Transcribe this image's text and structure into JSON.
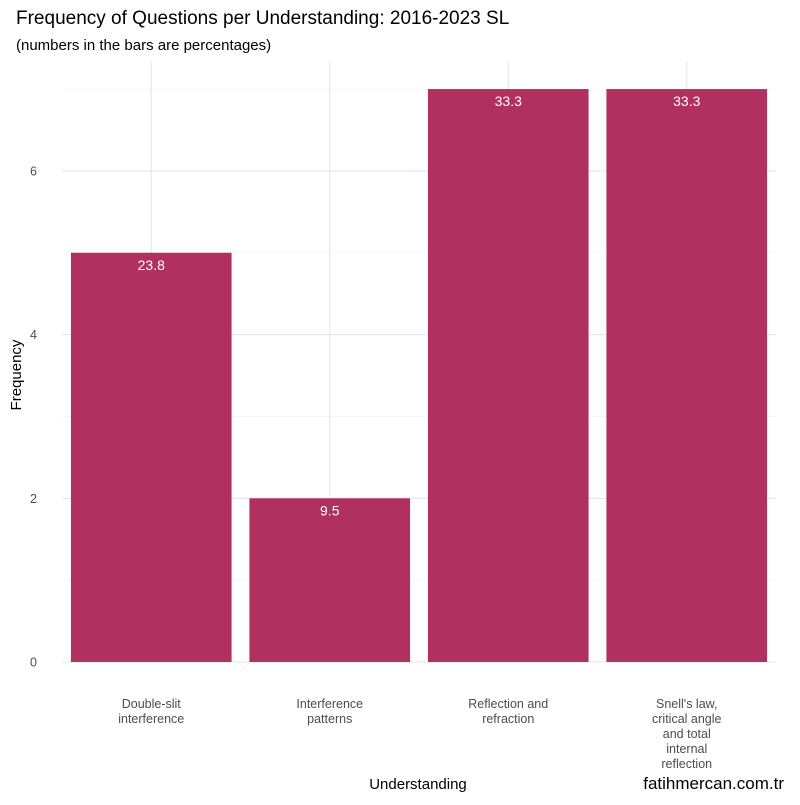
{
  "chart_data": {
    "type": "bar",
    "title": "Frequency of Questions per Understanding: 2016-2023 SL",
    "subtitle": "(numbers in the bars are percentages)",
    "xlabel": "Understanding",
    "ylabel": "Frequency",
    "categories": [
      [
        "Double-slit",
        "interference"
      ],
      [
        "Interference",
        "patterns"
      ],
      [
        "Reflection and",
        "refraction"
      ],
      [
        "Snell's law,",
        "critical angle",
        "and total",
        "internal",
        "reflection"
      ]
    ],
    "values": [
      5,
      2,
      7,
      7
    ],
    "percent_labels": [
      "23.8",
      "9.5",
      "33.3",
      "33.3"
    ],
    "yticks": [
      0,
      2,
      4,
      6
    ],
    "ylim": [
      0,
      7.3
    ],
    "grid": true,
    "bar_color": "#B03060",
    "bar_label_color": "#ffffff",
    "caption": "fatihmercan.com.tr"
  }
}
